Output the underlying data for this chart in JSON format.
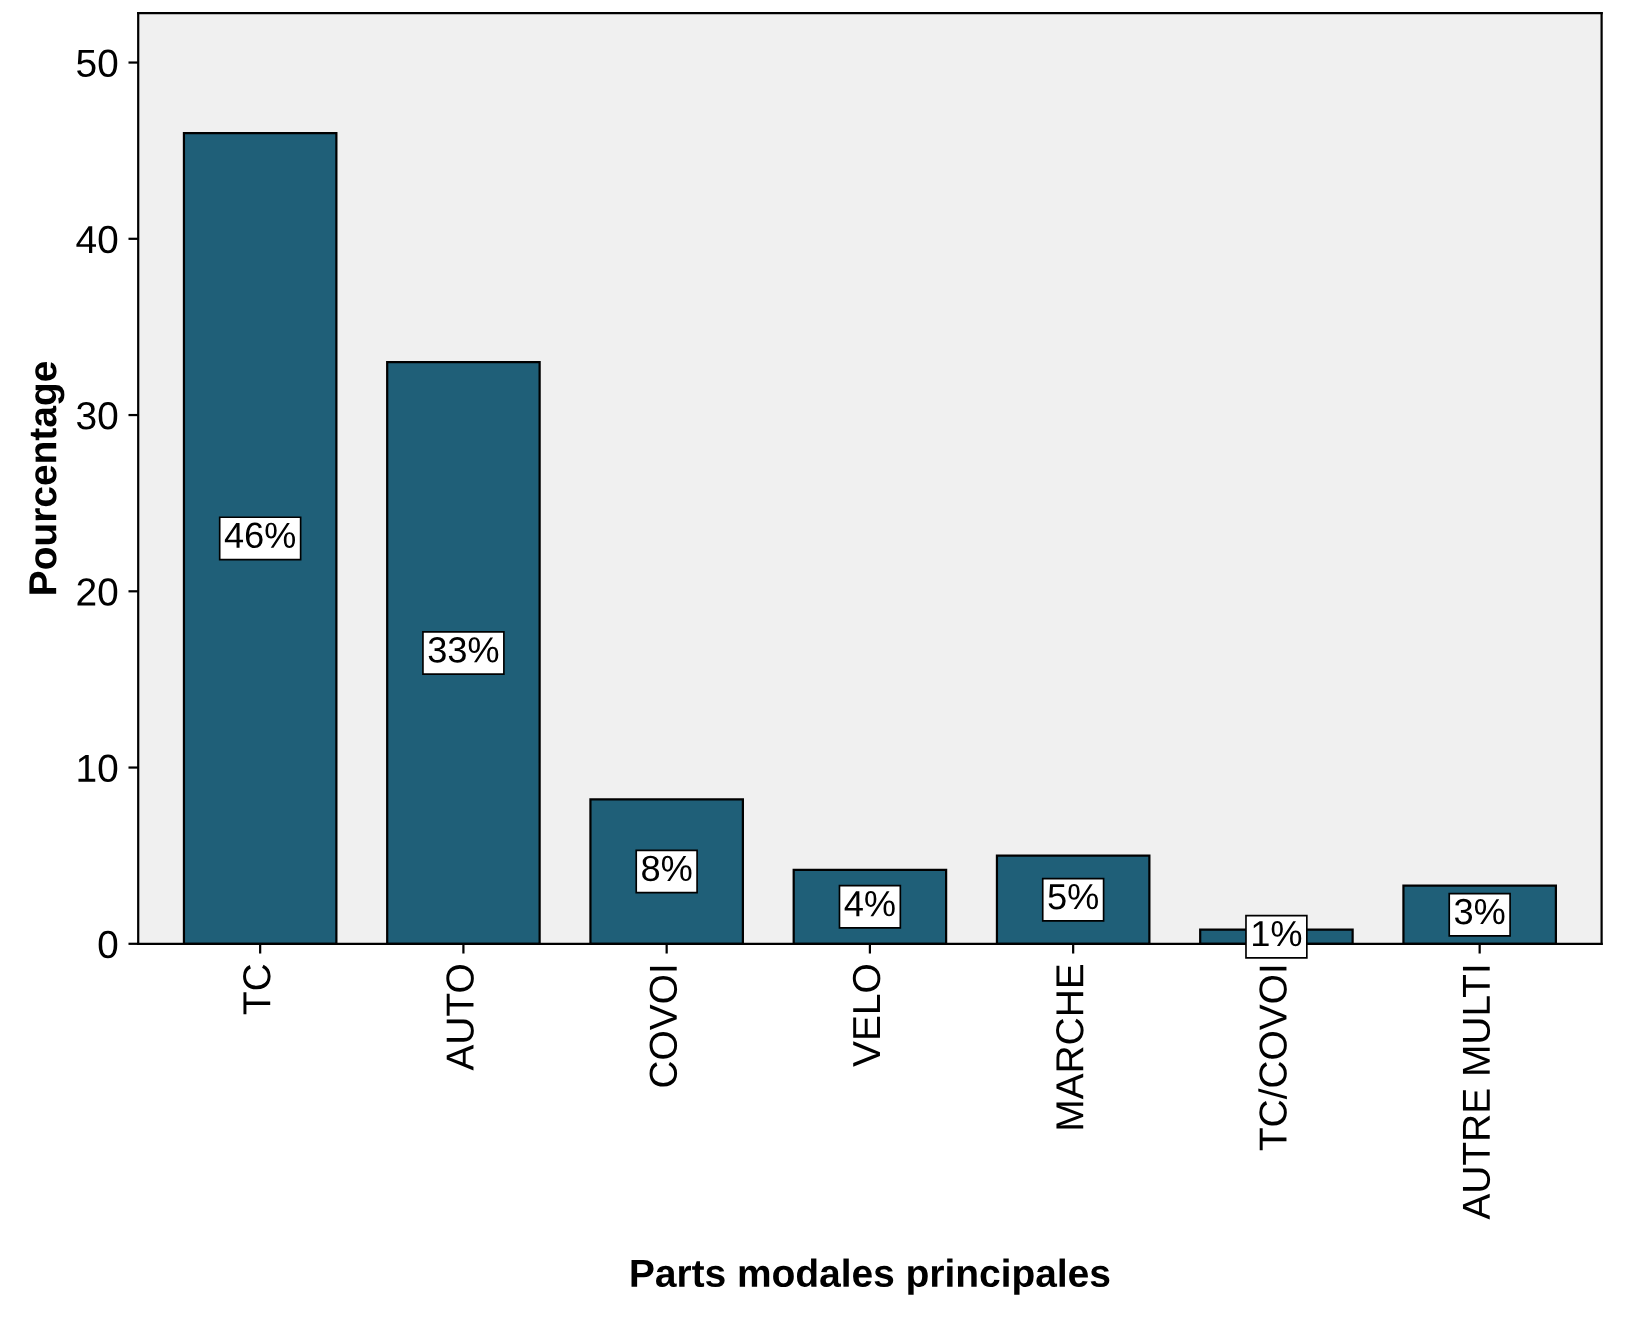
{
  "chart_data": {
    "type": "bar",
    "xlabel": "Parts modales principales",
    "ylabel": "Pourcentage",
    "categories": [
      "TC",
      "AUTO",
      "COVOI",
      "VELO",
      "MARCHE",
      "TC/COVOI",
      "AUTRE MULTI"
    ],
    "values": [
      46,
      33,
      8.2,
      4.2,
      5,
      0.8,
      3.3
    ],
    "value_labels": [
      "46%",
      "33%",
      "8%",
      "4%",
      "5%",
      "1%",
      "3%"
    ],
    "color": "#1f5f78",
    "ylim": [
      0,
      52.8
    ],
    "yticks": [
      0,
      10,
      20,
      30,
      40,
      50
    ],
    "grid": false
  }
}
